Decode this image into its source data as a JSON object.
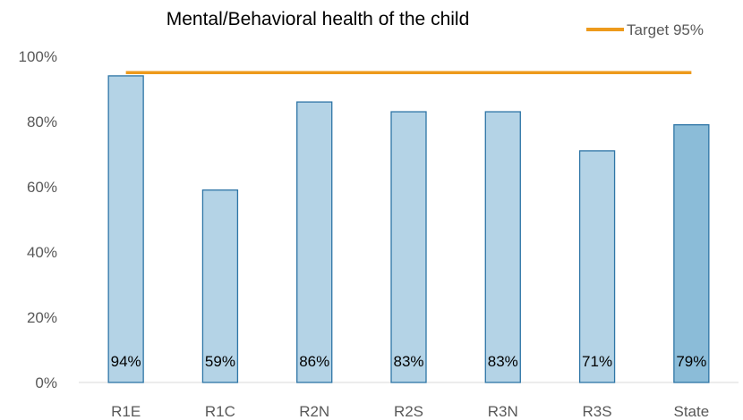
{
  "chart_data": {
    "type": "bar",
    "title": "Mental/Behavioral health of the child",
    "xlabel": "",
    "ylabel": "",
    "categories": [
      "R1E",
      "R1C",
      "R2N",
      "R2S",
      "R3N",
      "R3S",
      "State"
    ],
    "series": [
      {
        "values": [
          94,
          59,
          86,
          83,
          83,
          71,
          79
        ],
        "data_labels": [
          "94%",
          "59%",
          "86%",
          "83%",
          "83%",
          "71%",
          "79%"
        ]
      }
    ],
    "target": {
      "name": "Target 95%",
      "value": 95
    },
    "ylim": [
      0,
      100
    ],
    "yticks": [
      0,
      20,
      40,
      60,
      80,
      100
    ],
    "ytick_labels": [
      "0%",
      "20%",
      "40%",
      "60%",
      "80%",
      "100%"
    ],
    "grid": false,
    "legend": "top-right",
    "colors": {
      "bar": "#b4d3e6",
      "bar_highlight": "#8bbcd8",
      "bar_stroke": "#2e75a6",
      "target_line": "#ed9a1c",
      "axis": "#d9d9d9"
    }
  }
}
